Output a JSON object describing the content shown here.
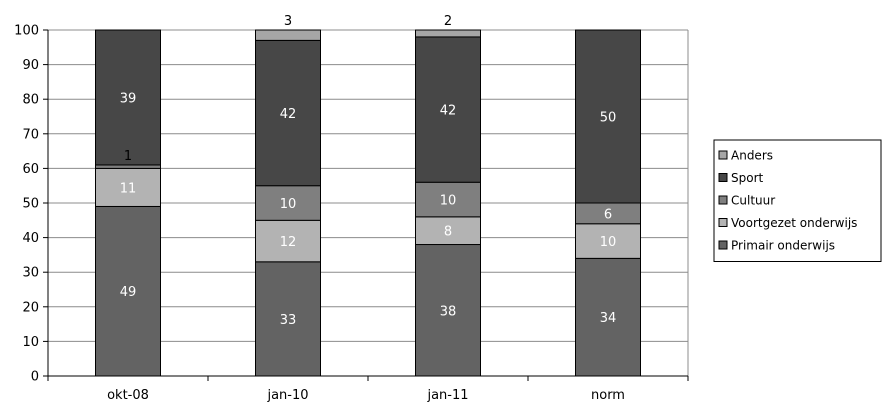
{
  "chart_data": {
    "type": "bar",
    "stacked": true,
    "title": "",
    "xlabel": "",
    "ylabel": "",
    "ylim": [
      0,
      100
    ],
    "yticks": [
      0,
      10,
      20,
      30,
      40,
      50,
      60,
      70,
      80,
      90,
      100
    ],
    "grid": true,
    "legend_position": "right",
    "categories": [
      "okt-08",
      "jan-10",
      "jan-11",
      "norm"
    ],
    "series": [
      {
        "name": "Primair onderwijs",
        "color": "#636363",
        "values": [
          49,
          33,
          38,
          34
        ],
        "labels": [
          "49",
          "33",
          "38",
          "34"
        ]
      },
      {
        "name": "Voortgezet onderwijs",
        "color": "#b3b3b3",
        "values": [
          11,
          12,
          8,
          10
        ],
        "labels": [
          "11",
          "12",
          "8",
          "10"
        ]
      },
      {
        "name": "Cultuur",
        "color": "#7f7f7f",
        "values": [
          1,
          10,
          10,
          6
        ],
        "labels": [
          "1",
          "10",
          "10",
          "6"
        ]
      },
      {
        "name": "Sport",
        "color": "#474747",
        "values": [
          39,
          42,
          42,
          50
        ],
        "labels": [
          "39",
          "42",
          "42",
          "50"
        ]
      },
      {
        "name": "Anders",
        "color": "#a6a6a6",
        "values": [
          0,
          3,
          2,
          0
        ],
        "labels": [
          "",
          "3",
          "2",
          ""
        ]
      }
    ]
  }
}
